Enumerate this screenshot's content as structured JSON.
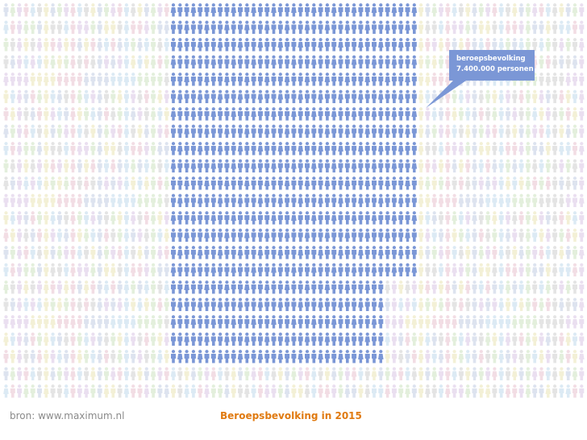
{
  "chart_data": {
    "type": "pictogram",
    "title": "Beroepsbevolking in 2015",
    "callout": {
      "label": "beroepsbevolking",
      "value": "7.400.000 personen",
      "persons": 7400000
    },
    "colors": {
      "highlight": "#7b97d6",
      "background_people": [
        "#dde3ef",
        "#e4e4e4",
        "#f2dde4",
        "#e3efdc",
        "#f3f0d6",
        "#dceaf4",
        "#eadff0"
      ]
    }
  },
  "footer": {
    "source": "bron: www.maximum.nl",
    "title": "Beroepsbevolking in 2015"
  }
}
